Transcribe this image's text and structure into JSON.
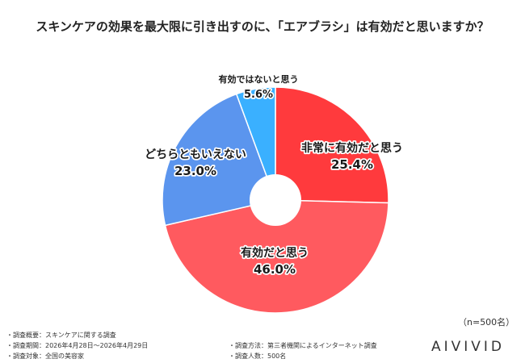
{
  "chart_data": {
    "type": "pie",
    "title": "スキンケアの効果を最大限に引き出すのに、「エアブラシ」は有効だと思いますか？",
    "slices": [
      {
        "label": "非常に有効だと思う",
        "value": 25.4,
        "display": "25.4%",
        "color": "#ff3a3d"
      },
      {
        "label": "有効だと思う",
        "value": 46.0,
        "display": "46.0%",
        "color": "#ff5a5f"
      },
      {
        "label": "どちらともいえない",
        "value": 23.0,
        "display": "23.0%",
        "color": "#5b95ee"
      },
      {
        "label": "有効ではないと思う",
        "value": 5.6,
        "display": "5.6%",
        "color": "#3ab0ff"
      }
    ]
  },
  "sample_note": "（n=500名）",
  "footnotes": {
    "survey_summary": "・調査概要：スキンケアに関する調査",
    "survey_period": "・調査期間：2026年4月28日～2026年4月29日",
    "survey_target": "・調査対象：全国の美容家",
    "survey_method": "・調査方法：第三者機関によるインターネット調査",
    "survey_count": "・調査人数：500名"
  },
  "brand": "AIVIVID"
}
